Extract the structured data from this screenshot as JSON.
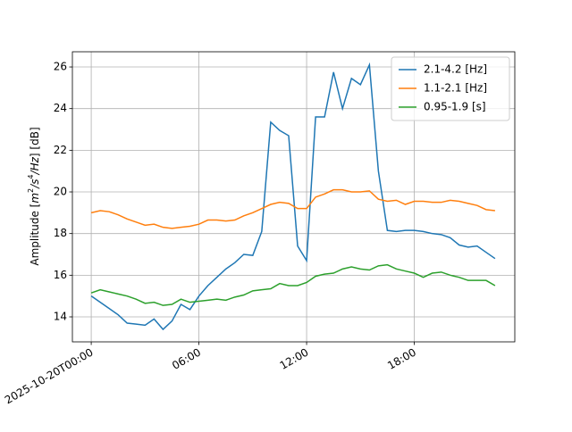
{
  "chart_data": {
    "type": "line",
    "ylabel_parts": [
      {
        "text": "Amplitude [",
        "style": "normal"
      },
      {
        "text": "m",
        "style": "italic"
      },
      {
        "text": "2",
        "style": "super"
      },
      {
        "text": "/s",
        "style": "italic"
      },
      {
        "text": "4",
        "style": "super"
      },
      {
        "text": "/Hz",
        "style": "italic"
      },
      {
        "text": "] [dB]",
        "style": "normal"
      }
    ],
    "x": [
      "2025-10-20T00:00",
      "2025-10-20T00:30",
      "2025-10-20T01:00",
      "2025-10-20T01:30",
      "2025-10-20T02:00",
      "2025-10-20T02:30",
      "2025-10-20T03:00",
      "2025-10-20T03:30",
      "2025-10-20T04:00",
      "2025-10-20T04:30",
      "2025-10-20T05:00",
      "2025-10-20T05:30",
      "2025-10-20T06:00",
      "2025-10-20T06:30",
      "2025-10-20T07:00",
      "2025-10-20T07:30",
      "2025-10-20T08:00",
      "2025-10-20T08:30",
      "2025-10-20T09:00",
      "2025-10-20T09:30",
      "2025-10-20T10:00",
      "2025-10-20T10:30",
      "2025-10-20T11:00",
      "2025-10-20T11:30",
      "2025-10-20T12:00",
      "2025-10-20T12:30",
      "2025-10-20T13:00",
      "2025-10-20T13:30",
      "2025-10-20T14:00",
      "2025-10-20T14:30",
      "2025-10-20T15:00",
      "2025-10-20T15:30",
      "2025-10-20T16:00",
      "2025-10-20T16:30",
      "2025-10-20T17:00",
      "2025-10-20T17:30",
      "2025-10-20T18:00",
      "2025-10-20T18:30",
      "2025-10-20T19:00",
      "2025-10-20T19:30",
      "2025-10-20T20:00",
      "2025-10-20T20:30",
      "2025-10-20T21:00",
      "2025-10-20T21:30",
      "2025-10-20T22:00",
      "2025-10-20T22:30"
    ],
    "series": [
      {
        "name": "2.1-4.2 [Hz]",
        "color": "#1f77b4",
        "values": [
          15.0,
          14.7,
          14.4,
          14.1,
          13.7,
          13.65,
          13.6,
          13.9,
          13.4,
          13.8,
          14.6,
          14.35,
          15.0,
          15.5,
          15.9,
          16.3,
          16.6,
          17.0,
          16.95,
          18.1,
          23.35,
          22.95,
          22.7,
          17.4,
          16.7,
          23.6,
          23.6,
          25.75,
          24.0,
          25.45,
          25.15,
          26.1,
          21.0,
          18.15,
          18.1,
          18.15,
          18.15,
          18.1,
          18.0,
          17.95,
          17.8,
          17.45,
          17.35,
          17.4,
          17.1,
          16.8
        ]
      },
      {
        "name": "1.1-2.1 [Hz]",
        "color": "#ff7f0e",
        "values": [
          19.0,
          19.1,
          19.05,
          18.9,
          18.7,
          18.55,
          18.4,
          18.45,
          18.3,
          18.25,
          18.3,
          18.35,
          18.45,
          18.65,
          18.65,
          18.6,
          18.65,
          18.85,
          19.0,
          19.2,
          19.4,
          19.5,
          19.45,
          19.2,
          19.2,
          19.75,
          19.9,
          20.1,
          20.1,
          20.0,
          20.0,
          20.05,
          19.65,
          19.55,
          19.6,
          19.4,
          19.55,
          19.55,
          19.5,
          19.5,
          19.6,
          19.55,
          19.45,
          19.35,
          19.15,
          19.1
        ]
      },
      {
        "name": "0.95-1.9 [s]",
        "color": "#2ca02c",
        "values": [
          15.15,
          15.3,
          15.2,
          15.1,
          15.0,
          14.85,
          14.65,
          14.7,
          14.55,
          14.6,
          14.85,
          14.7,
          14.75,
          14.8,
          14.85,
          14.8,
          14.95,
          15.05,
          15.25,
          15.3,
          15.35,
          15.6,
          15.5,
          15.5,
          15.65,
          15.95,
          16.05,
          16.1,
          16.3,
          16.4,
          16.3,
          16.25,
          16.45,
          16.5,
          16.3,
          16.2,
          16.1,
          15.9,
          16.1,
          16.15,
          16.0,
          15.9,
          15.75,
          15.75,
          15.75,
          15.5
        ]
      }
    ],
    "xlim": [
      "2025-10-19T22:57",
      "2025-10-20T23:36"
    ],
    "xticks": [
      {
        "value": "2025-10-20T00:00",
        "label": "2025-10-20T00:00"
      },
      {
        "value": "2025-10-20T06:00",
        "label": "06:00"
      },
      {
        "value": "2025-10-20T12:00",
        "label": "12:00"
      },
      {
        "value": "2025-10-20T18:00",
        "label": "18:00"
      }
    ],
    "ylim": [
      12.8,
      26.73
    ],
    "yticks": [
      14,
      16,
      18,
      20,
      22,
      24,
      26
    ],
    "grid": true,
    "legend": "upper-right"
  }
}
